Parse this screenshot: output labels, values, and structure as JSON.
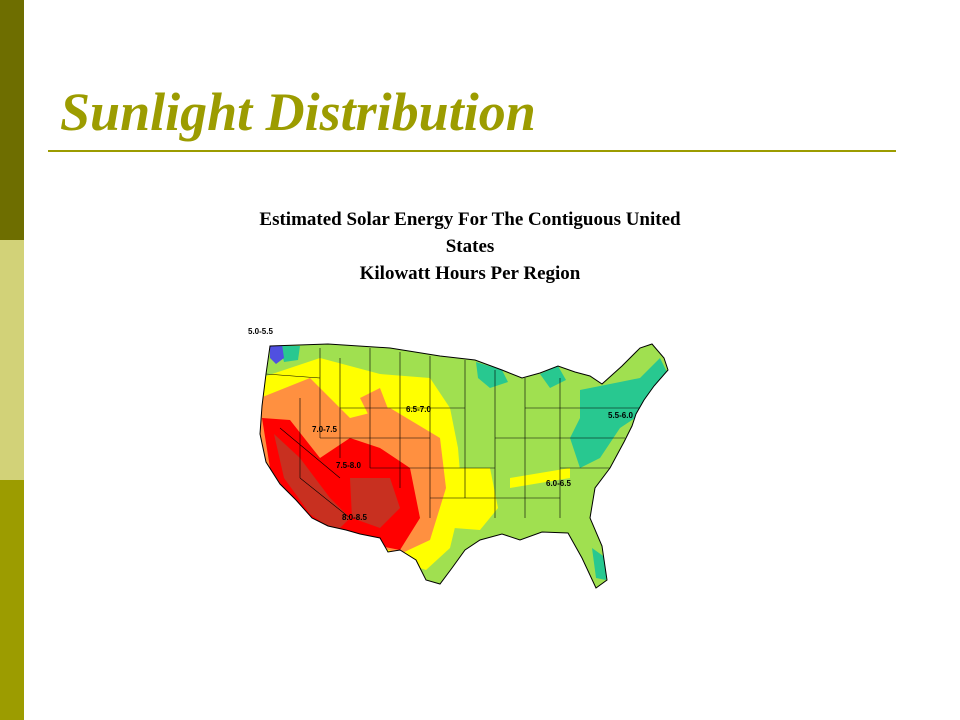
{
  "slide": {
    "title": "Sunlight Distribution",
    "accent_color": "#9c9c00",
    "sidebar_colors": [
      "#6e6e00",
      "#d2d278",
      "#9c9c00"
    ]
  },
  "map": {
    "caption_lines": [
      "Estimated Solar Energy For The Contiguous United",
      "States",
      "Kilowatt Hours Per Region"
    ],
    "zones": [
      {
        "label": "5.0-5.5",
        "color": "#5050e0"
      },
      {
        "label": "5.5-6.0",
        "color": "#28c890"
      },
      {
        "label": "6.0-6.5",
        "color": "#a0e050"
      },
      {
        "label": "6.5-7.0",
        "color": "#ffff00"
      },
      {
        "label": "7.0-7.5",
        "color": "#ff9040"
      },
      {
        "label": "7.5-8.0",
        "color": "#ff0000"
      },
      {
        "label": "8.0-8.5",
        "color": "#c83020"
      }
    ]
  }
}
